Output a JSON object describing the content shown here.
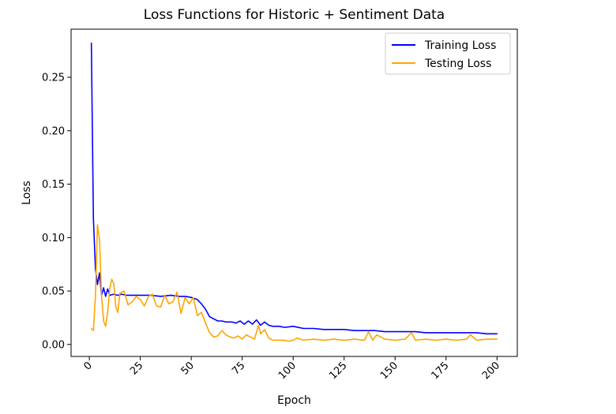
{
  "chart_data": {
    "type": "line",
    "title": "Loss Functions for Historic + Sentiment Data",
    "xlabel": "Epoch",
    "ylabel": "Loss",
    "xlim": [
      -8.95,
      209.95
    ],
    "ylim": [
      -0.0112,
      0.295
    ],
    "grid": false,
    "legend_position": "top-right",
    "x_ticks": [
      {
        "value": 0,
        "label": "0"
      },
      {
        "value": 25,
        "label": "25"
      },
      {
        "value": 50,
        "label": "50"
      },
      {
        "value": 75,
        "label": "75"
      },
      {
        "value": 100,
        "label": "100"
      },
      {
        "value": 125,
        "label": "125"
      },
      {
        "value": 150,
        "label": "150"
      },
      {
        "value": 175,
        "label": "175"
      },
      {
        "value": 200,
        "label": "200"
      }
    ],
    "x_tick_rotation": 45,
    "y_ticks": [
      {
        "value": 0.0,
        "label": "0.00"
      },
      {
        "value": 0.05,
        "label": "0.05"
      },
      {
        "value": 0.1,
        "label": "0.10"
      },
      {
        "value": 0.15,
        "label": "0.15"
      },
      {
        "value": 0.2,
        "label": "0.20"
      },
      {
        "value": 0.25,
        "label": "0.25"
      }
    ],
    "series": [
      {
        "name": "Training Loss",
        "color": "#0000ff",
        "points": [
          [
            1,
            0.282
          ],
          [
            2,
            0.118
          ],
          [
            3,
            0.071
          ],
          [
            4,
            0.056
          ],
          [
            5,
            0.067
          ],
          [
            6,
            0.046
          ],
          [
            7,
            0.053
          ],
          [
            8,
            0.045
          ],
          [
            9,
            0.052
          ],
          [
            10,
            0.046
          ],
          [
            12,
            0.047
          ],
          [
            14,
            0.046
          ],
          [
            16,
            0.047
          ],
          [
            18,
            0.046
          ],
          [
            20,
            0.046
          ],
          [
            25,
            0.046
          ],
          [
            30,
            0.046
          ],
          [
            35,
            0.045
          ],
          [
            40,
            0.046
          ],
          [
            44,
            0.045
          ],
          [
            47,
            0.045
          ],
          [
            50,
            0.044
          ],
          [
            53,
            0.042
          ],
          [
            55,
            0.038
          ],
          [
            57,
            0.033
          ],
          [
            59,
            0.026
          ],
          [
            61,
            0.024
          ],
          [
            63,
            0.022
          ],
          [
            65,
            0.022
          ],
          [
            67,
            0.021
          ],
          [
            70,
            0.021
          ],
          [
            72,
            0.02
          ],
          [
            74,
            0.022
          ],
          [
            76,
            0.019
          ],
          [
            78,
            0.022
          ],
          [
            80,
            0.019
          ],
          [
            82,
            0.023
          ],
          [
            84,
            0.018
          ],
          [
            86,
            0.021
          ],
          [
            88,
            0.018
          ],
          [
            90,
            0.017
          ],
          [
            93,
            0.017
          ],
          [
            96,
            0.016
          ],
          [
            100,
            0.017
          ],
          [
            105,
            0.015
          ],
          [
            110,
            0.015
          ],
          [
            115,
            0.014
          ],
          [
            120,
            0.014
          ],
          [
            125,
            0.014
          ],
          [
            130,
            0.013
          ],
          [
            135,
            0.013
          ],
          [
            140,
            0.013
          ],
          [
            145,
            0.012
          ],
          [
            150,
            0.012
          ],
          [
            155,
            0.012
          ],
          [
            160,
            0.012
          ],
          [
            165,
            0.011
          ],
          [
            170,
            0.011
          ],
          [
            175,
            0.011
          ],
          [
            180,
            0.011
          ],
          [
            185,
            0.011
          ],
          [
            190,
            0.011
          ],
          [
            195,
            0.01
          ],
          [
            200,
            0.01
          ]
        ]
      },
      {
        "name": "Testing Loss",
        "color": "#ffa500",
        "points": [
          [
            1,
            0.015
          ],
          [
            2,
            0.013
          ],
          [
            3,
            0.045
          ],
          [
            4,
            0.112
          ],
          [
            5,
            0.098
          ],
          [
            6,
            0.045
          ],
          [
            7,
            0.022
          ],
          [
            8,
            0.017
          ],
          [
            9,
            0.03
          ],
          [
            10,
            0.052
          ],
          [
            11,
            0.061
          ],
          [
            12,
            0.057
          ],
          [
            13,
            0.035
          ],
          [
            14,
            0.03
          ],
          [
            15,
            0.048
          ],
          [
            17,
            0.05
          ],
          [
            19,
            0.037
          ],
          [
            21,
            0.04
          ],
          [
            23,
            0.045
          ],
          [
            25,
            0.042
          ],
          [
            27,
            0.036
          ],
          [
            29,
            0.045
          ],
          [
            31,
            0.047
          ],
          [
            33,
            0.036
          ],
          [
            35,
            0.035
          ],
          [
            37,
            0.046
          ],
          [
            39,
            0.038
          ],
          [
            41,
            0.04
          ],
          [
            43,
            0.049
          ],
          [
            45,
            0.029
          ],
          [
            47,
            0.044
          ],
          [
            49,
            0.038
          ],
          [
            51,
            0.044
          ],
          [
            53,
            0.027
          ],
          [
            55,
            0.03
          ],
          [
            57,
            0.02
          ],
          [
            59,
            0.011
          ],
          [
            61,
            0.007
          ],
          [
            63,
            0.008
          ],
          [
            65,
            0.013
          ],
          [
            67,
            0.009
          ],
          [
            69,
            0.007
          ],
          [
            71,
            0.006
          ],
          [
            73,
            0.008
          ],
          [
            75,
            0.005
          ],
          [
            77,
            0.009
          ],
          [
            79,
            0.007
          ],
          [
            81,
            0.005
          ],
          [
            83,
            0.018
          ],
          [
            84,
            0.01
          ],
          [
            86,
            0.014
          ],
          [
            88,
            0.006
          ],
          [
            90,
            0.004
          ],
          [
            92,
            0.004
          ],
          [
            95,
            0.004
          ],
          [
            98,
            0.003
          ],
          [
            100,
            0.004
          ],
          [
            102,
            0.006
          ],
          [
            105,
            0.004
          ],
          [
            110,
            0.005
          ],
          [
            115,
            0.004
          ],
          [
            120,
            0.005
          ],
          [
            125,
            0.004
          ],
          [
            130,
            0.005
          ],
          [
            135,
            0.004
          ],
          [
            137,
            0.012
          ],
          [
            139,
            0.004
          ],
          [
            141,
            0.009
          ],
          [
            145,
            0.005
          ],
          [
            150,
            0.004
          ],
          [
            155,
            0.005
          ],
          [
            158,
            0.011
          ],
          [
            160,
            0.004
          ],
          [
            165,
            0.005
          ],
          [
            170,
            0.004
          ],
          [
            175,
            0.005
          ],
          [
            180,
            0.004
          ],
          [
            185,
            0.005
          ],
          [
            187,
            0.009
          ],
          [
            190,
            0.004
          ],
          [
            195,
            0.005
          ],
          [
            200,
            0.005
          ]
        ]
      }
    ]
  }
}
